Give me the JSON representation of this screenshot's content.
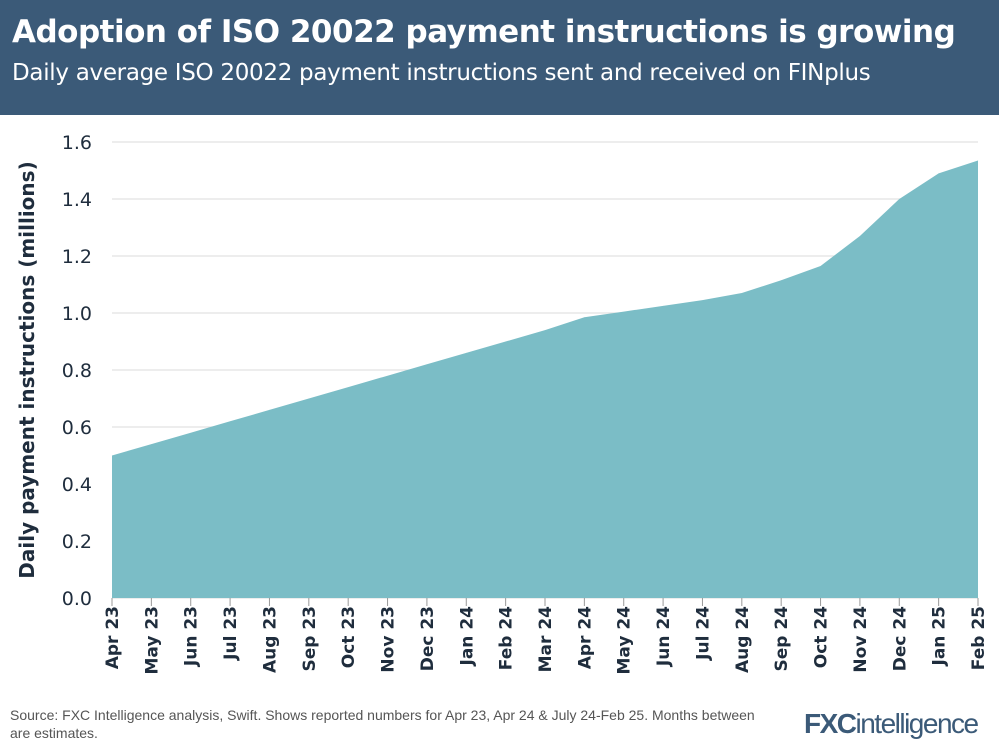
{
  "header": {
    "title": "Adoption of ISO 20022 payment instructions is growing",
    "subtitle": "Daily average ISO 20022 payment instructions sent and received on FINplus"
  },
  "chart_data": {
    "type": "area",
    "title": "Adoption of ISO 20022 payment instructions is growing",
    "subtitle": "Daily average ISO 20022 payment instructions sent and received on FINplus",
    "xlabel": "",
    "ylabel": "Daily payment instructions (millions)",
    "ylim": [
      0,
      1.6
    ],
    "yticks": [
      "0.0",
      "0.2",
      "0.4",
      "0.6",
      "0.8",
      "1.0",
      "1.2",
      "1.4",
      "1.6"
    ],
    "grid": true,
    "color": "#7bbdc6",
    "categories": [
      "Apr 23",
      "May 23",
      "Jun 23",
      "Jul 23",
      "Aug 23",
      "Sep 23",
      "Oct 23",
      "Nov 23",
      "Dec 23",
      "Jan 24",
      "Feb 24",
      "Mar 24",
      "Apr 24",
      "May 24",
      "Jun 24",
      "Jul 24",
      "Aug 24",
      "Sep 24",
      "Oct 24",
      "Nov 24",
      "Dec 24",
      "Jan 25",
      "Feb 25"
    ],
    "values": [
      0.5,
      0.54,
      0.58,
      0.62,
      0.66,
      0.7,
      0.74,
      0.78,
      0.82,
      0.86,
      0.9,
      0.94,
      0.985,
      1.005,
      1.025,
      1.045,
      1.07,
      1.115,
      1.165,
      1.27,
      1.4,
      1.49,
      1.535
    ]
  },
  "footer": {
    "source": "Source: FXC Intelligence analysis, Swift. Shows reported numbers for Apr 23, Apr 24 & July 24-Feb 25. Months between are estimates.",
    "logo_bold": "FXC",
    "logo_rest": "intelligence"
  },
  "colors": {
    "header": "#3b5a78",
    "area": "#7bbdc6"
  }
}
